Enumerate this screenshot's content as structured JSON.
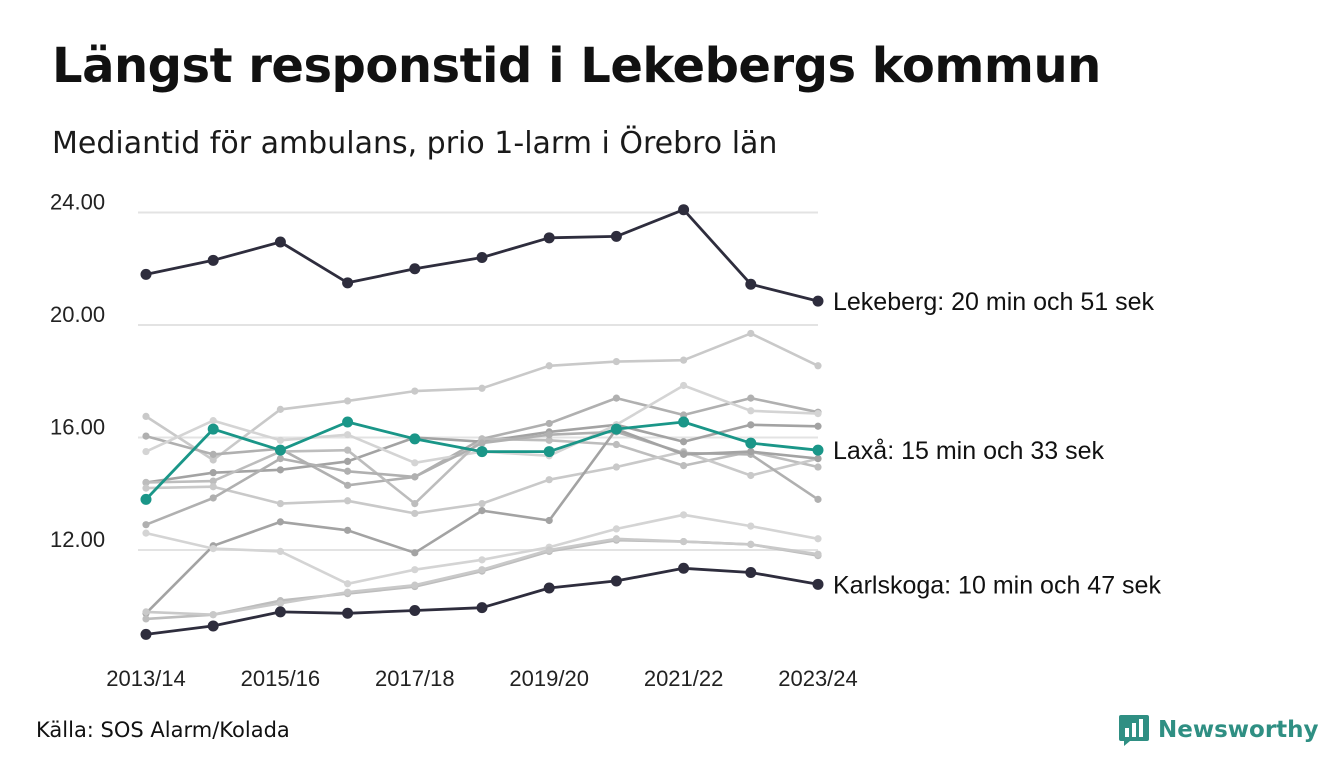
{
  "header": {
    "title": "Längst responstid i Lekebergs kommun",
    "subtitle": "Mediantid för ambulans, prio 1-larm i Örebro län"
  },
  "footer": {
    "source": "Källa: SOS Alarm/Kolada",
    "brand": "Newsworthy"
  },
  "colors": {
    "highlight_dark": "#2e2d3d",
    "highlight_teal": "#1a9688",
    "background_series": [
      "#c9c9c9",
      "#b0b0b0",
      "#a3a3a3",
      "#d4d4d4",
      "#bdbdbd"
    ],
    "grid": "#e3e3e3",
    "brand": "#2f8f83"
  },
  "chart_data": {
    "type": "line",
    "categories": [
      "2013/14",
      "2014/15",
      "2015/16",
      "2016/17",
      "2017/18",
      "2018/19",
      "2019/20",
      "2020/21",
      "2021/22",
      "2022/23",
      "2023/24"
    ],
    "x_tick_labels": [
      "2013/14",
      "2015/16",
      "2017/18",
      "2019/20",
      "2021/22",
      "2023/24"
    ],
    "y_ticks": [
      "12.00",
      "16.00",
      "20.00",
      "24.00"
    ],
    "ylim": [
      9,
      24.5
    ],
    "grid": "horizontal",
    "highlighted": [
      {
        "label": "Lekeberg: 20 min och 51 sek",
        "color": "dark",
        "values": [
          21.8,
          22.3,
          22.95,
          21.5,
          22.0,
          22.4,
          23.1,
          23.15,
          24.1,
          21.45,
          20.85
        ]
      },
      {
        "label": "Laxå: 15 min och 33 sek",
        "color": "teal",
        "values": [
          13.8,
          16.3,
          15.55,
          16.55,
          15.95,
          15.5,
          15.5,
          16.3,
          16.55,
          15.8,
          15.55
        ]
      },
      {
        "label": "Karlskoga: 10 min och 47 sek",
        "color": "dark",
        "values": [
          9.0,
          9.3,
          9.8,
          9.75,
          9.85,
          9.95,
          10.65,
          10.9,
          11.35,
          11.2,
          10.78
        ]
      }
    ],
    "background_series": [
      [
        16.75,
        15.2,
        17.0,
        17.3,
        17.65,
        17.75,
        18.55,
        18.7,
        18.75,
        19.7,
        18.55
      ],
      [
        16.05,
        15.4,
        15.6,
        14.3,
        14.6,
        15.95,
        16.5,
        17.4,
        16.8,
        17.4,
        16.9
      ],
      [
        14.4,
        14.75,
        14.85,
        15.15,
        16.0,
        15.85,
        16.2,
        16.45,
        15.85,
        16.45,
        16.4
      ],
      [
        15.5,
        16.6,
        15.9,
        16.1,
        15.1,
        15.5,
        15.35,
        16.45,
        17.85,
        16.95,
        16.85
      ],
      [
        14.4,
        14.45,
        15.5,
        15.55,
        13.65,
        15.95,
        15.9,
        15.75,
        15.0,
        15.5,
        14.95
      ],
      [
        14.2,
        14.25,
        13.65,
        13.75,
        13.3,
        13.65,
        14.5,
        14.95,
        15.5,
        14.65,
        15.25
      ],
      [
        12.9,
        13.85,
        15.25,
        14.8,
        14.6,
        15.8,
        16.1,
        16.2,
        15.45,
        15.4,
        13.8
      ],
      [
        9.75,
        12.15,
        13.0,
        12.7,
        11.9,
        13.4,
        13.05,
        16.3,
        15.4,
        15.5,
        15.25
      ],
      [
        12.6,
        12.05,
        11.95,
        10.8,
        11.3,
        11.65,
        12.1,
        12.75,
        13.25,
        12.85,
        12.4
      ],
      [
        9.55,
        9.7,
        10.2,
        10.45,
        10.7,
        11.25,
        11.95,
        12.35,
        12.3,
        12.2,
        11.8
      ],
      [
        9.8,
        9.7,
        10.1,
        10.5,
        10.75,
        11.3,
        12.0,
        12.4,
        12.3,
        12.2,
        11.85
      ]
    ]
  }
}
